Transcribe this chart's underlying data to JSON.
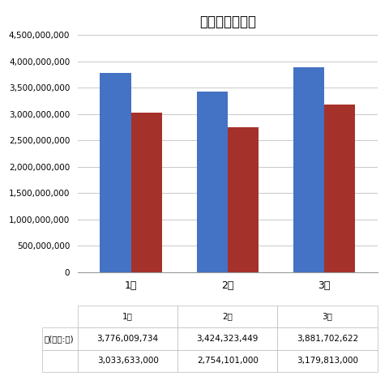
{
  "title": "被害総額の推移",
  "months": [
    "1月",
    "2月",
    "3月"
  ],
  "total_damage": [
    3776009734,
    3424323449,
    3881702622
  ],
  "furikome": [
    3033633000,
    2754101000,
    3179813000
  ],
  "total_color": "#4472c4",
  "furikome_color": "#a5312b",
  "row1_label": "）(単位:円)",
  "ylim_max": 4500000000,
  "ytick_step": 500000000,
  "background_color": "#ffffff",
  "bar_width": 0.32,
  "table_fontsize": 7.5,
  "legend_fontsize": 7.5,
  "title_fontsize": 12,
  "tick_fontsize": 9
}
